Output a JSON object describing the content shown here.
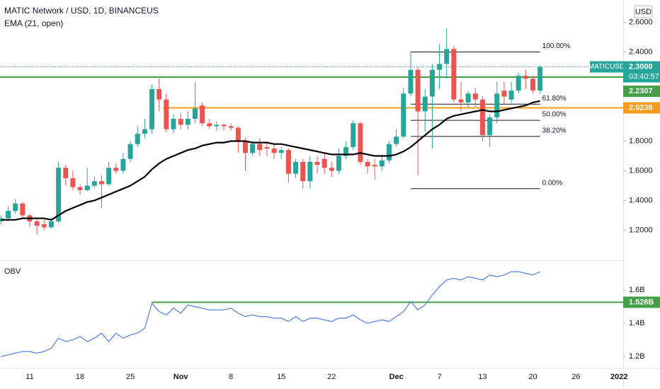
{
  "chart_data": [
    {
      "type": "candlestick",
      "title": "MATIC Network / USD, 1D, BINANCEUS",
      "currency": "USD",
      "categories": [
        null,
        null,
        null,
        null,
        "11",
        null,
        null,
        null,
        null,
        null,
        null,
        "18",
        null,
        null,
        null,
        null,
        null,
        null,
        "25",
        null,
        null,
        null,
        null,
        null,
        null,
        "Nov",
        null,
        null,
        null,
        null,
        null,
        null,
        "8",
        null,
        null,
        null,
        null,
        null,
        null,
        "15",
        null,
        null,
        null,
        null,
        null,
        null,
        "22",
        null,
        null,
        null,
        null,
        null,
        null,
        null,
        null,
        "Dec",
        null,
        null,
        null,
        null,
        null,
        "7",
        null,
        null,
        null,
        null,
        null,
        "13",
        null,
        null,
        null,
        null,
        null,
        null,
        "20",
        null,
        null,
        null,
        null,
        null,
        "26",
        null,
        null,
        null,
        null,
        null,
        "2022"
      ],
      "open": [
        1.26,
        1.28,
        1.33,
        1.38,
        1.3,
        1.26,
        1.24,
        1.22,
        1.26,
        1.62,
        1.55,
        1.49,
        1.47,
        1.5,
        1.53,
        1.51,
        1.62,
        1.6,
        1.68,
        1.78,
        1.85,
        1.88,
        2.15,
        2.08,
        1.88,
        1.95,
        1.91,
        1.95,
        2.04,
        1.92,
        1.9,
        1.91,
        1.9,
        1.89,
        1.8,
        1.72,
        1.78,
        1.76,
        1.75,
        1.72,
        1.74,
        1.58,
        1.66,
        1.53,
        1.66,
        1.68,
        1.62,
        1.6,
        1.7,
        1.76,
        1.92,
        1.66,
        1.64,
        1.63,
        1.67,
        1.78,
        1.83,
        2.12,
        2.28,
        2.0,
        2.1,
        2.28,
        2.32,
        2.42,
        2.08,
        2.06,
        2.12,
        2.08,
        1.84,
        1.96,
        2.14,
        2.08,
        2.14,
        2.24,
        2.22,
        2.14,
        null,
        null,
        null,
        null,
        null,
        null,
        null,
        null,
        null,
        null,
        null
      ],
      "high": [
        1.3,
        1.36,
        1.41,
        1.39,
        1.31,
        1.28,
        1.27,
        1.28,
        1.66,
        1.64,
        1.6,
        1.51,
        1.62,
        1.56,
        1.57,
        1.66,
        1.65,
        1.72,
        1.8,
        1.9,
        1.95,
        2.18,
        2.22,
        2.12,
        1.98,
        1.99,
        2.0,
        2.2,
        2.06,
        1.95,
        1.93,
        1.92,
        1.92,
        1.9,
        1.82,
        1.8,
        1.82,
        1.8,
        1.78,
        1.76,
        1.75,
        1.68,
        1.68,
        1.7,
        1.7,
        1.72,
        1.66,
        1.75,
        1.8,
        1.94,
        1.93,
        1.68,
        1.68,
        1.7,
        1.8,
        1.88,
        2.16,
        2.4,
        2.3,
        2.15,
        2.32,
        2.45,
        2.56,
        2.44,
        2.2,
        2.14,
        2.16,
        2.1,
        1.98,
        2.2,
        2.2,
        2.2,
        2.26,
        2.28,
        2.24,
        2.31,
        null,
        null,
        null,
        null,
        null,
        null,
        null,
        null,
        null,
        null,
        null
      ],
      "low": [
        1.24,
        1.26,
        1.31,
        1.28,
        1.22,
        1.17,
        1.2,
        1.21,
        1.25,
        1.5,
        1.47,
        1.44,
        1.46,
        1.48,
        1.35,
        1.5,
        1.58,
        1.58,
        1.66,
        1.76,
        1.82,
        1.85,
        2.0,
        1.86,
        1.85,
        1.88,
        1.88,
        1.92,
        1.9,
        1.88,
        1.87,
        1.87,
        1.87,
        1.72,
        1.6,
        1.7,
        1.7,
        1.7,
        1.68,
        1.68,
        1.52,
        1.55,
        1.48,
        1.48,
        1.58,
        1.58,
        1.56,
        1.58,
        1.68,
        1.74,
        1.64,
        1.58,
        1.54,
        1.6,
        1.65,
        1.76,
        1.82,
        2.1,
        1.57,
        1.86,
        1.75,
        2.15,
        2.22,
        2.06,
        2.0,
        2.02,
        2.03,
        1.8,
        1.76,
        1.92,
        2.05,
        2.05,
        2.12,
        2.15,
        2.12,
        2.12,
        null,
        null,
        null,
        null,
        null,
        null,
        null,
        null,
        null,
        null,
        null
      ],
      "close": [
        1.28,
        1.33,
        1.38,
        1.3,
        1.26,
        1.23,
        1.22,
        1.26,
        1.62,
        1.55,
        1.49,
        1.47,
        1.5,
        1.53,
        1.51,
        1.62,
        1.6,
        1.68,
        1.78,
        1.85,
        1.88,
        2.15,
        2.08,
        1.88,
        1.95,
        1.91,
        1.95,
        2.02,
        1.92,
        1.9,
        1.91,
        1.9,
        1.89,
        1.8,
        1.72,
        1.78,
        1.74,
        1.75,
        1.72,
        1.74,
        1.58,
        1.66,
        1.53,
        1.66,
        1.64,
        1.62,
        1.6,
        1.7,
        1.76,
        1.92,
        1.66,
        1.63,
        1.63,
        1.67,
        1.78,
        1.83,
        2.12,
        2.28,
        2.0,
        2.1,
        2.28,
        2.32,
        2.42,
        2.08,
        2.06,
        2.12,
        2.08,
        1.84,
        1.96,
        2.12,
        2.1,
        2.14,
        2.24,
        2.22,
        2.14,
        2.3,
        null,
        null,
        null,
        null,
        null,
        null,
        null,
        null,
        null,
        null,
        null
      ],
      "up_color": "#26a69a",
      "down_color": "#ef5350",
      "series": [
        {
          "name": "EMA (21, open)",
          "color": "#000000",
          "values": [
            1.27,
            1.27,
            1.27,
            1.28,
            1.28,
            1.28,
            1.28,
            1.27,
            1.3,
            1.33,
            1.35,
            1.37,
            1.39,
            1.4,
            1.42,
            1.44,
            1.46,
            1.48,
            1.5,
            1.53,
            1.56,
            1.61,
            1.65,
            1.68,
            1.7,
            1.72,
            1.74,
            1.75,
            1.77,
            1.78,
            1.79,
            1.79,
            1.8,
            1.8,
            1.8,
            1.79,
            1.79,
            1.79,
            1.78,
            1.78,
            1.77,
            1.76,
            1.75,
            1.74,
            1.73,
            1.72,
            1.71,
            1.71,
            1.71,
            1.71,
            1.72,
            1.71,
            1.7,
            1.7,
            1.7,
            1.71,
            1.73,
            1.76,
            1.8,
            1.84,
            1.88,
            1.91,
            1.95,
            1.97,
            1.98,
            1.99,
            2.0,
            2.01,
            2.0,
            2.0,
            2.01,
            2.02,
            2.03,
            2.04,
            2.06,
            2.07,
            null,
            null,
            null,
            null,
            null,
            null,
            null,
            null,
            null,
            null,
            null
          ]
        }
      ],
      "ylim": [
        1.0,
        2.75
      ],
      "yticks": [
        {
          "value": 2.6,
          "label": "2.6000"
        },
        {
          "value": 2.4,
          "label": "2.4000"
        },
        {
          "value": 1.8,
          "label": "1.8000"
        },
        {
          "value": 1.6,
          "label": "1.6000"
        },
        {
          "value": 1.4,
          "label": "1.4000"
        },
        {
          "value": 1.2,
          "label": "1.2000"
        }
      ],
      "hlines": [
        {
          "value": 2.2307,
          "color": "#43a047"
        },
        {
          "value": 2.0238,
          "color": "#f59c1a"
        }
      ],
      "last": {
        "name": "MATICUSD",
        "value": 2.3,
        "value_label": "2.3000",
        "countdown": "03:40:57",
        "color": "#26a69a"
      },
      "fib": [
        {
          "value": 2.4,
          "label": "100.00%"
        },
        {
          "value": 2.0486,
          "label": "61.80%"
        },
        {
          "value": 1.94,
          "label": "50.00%"
        },
        {
          "value": 1.8314,
          "label": "38.20%"
        },
        {
          "value": 1.48,
          "label": "0.00%"
        }
      ]
    },
    {
      "type": "line",
      "title": "OBV",
      "color": "#4f7fe8",
      "values": [
        1200000000.0,
        1210000000.0,
        1220000000.0,
        1230000000.0,
        1230000000.0,
        1220000000.0,
        1230000000.0,
        1250000000.0,
        1310000000.0,
        1290000000.0,
        1300000000.0,
        1320000000.0,
        1290000000.0,
        1310000000.0,
        1340000000.0,
        1290000000.0,
        1340000000.0,
        1310000000.0,
        1330000000.0,
        1340000000.0,
        1370000000.0,
        1520000000.0,
        1470000000.0,
        1450000000.0,
        1490000000.0,
        1460000000.0,
        1510000000.0,
        1500000000.0,
        1490000000.0,
        1480000000.0,
        1480000000.0,
        1480000000.0,
        1490000000.0,
        1460000000.0,
        1440000000.0,
        1450000000.0,
        1440000000.0,
        1440000000.0,
        1430000000.0,
        1430000000.0,
        1410000000.0,
        1440000000.0,
        1410000000.0,
        1430000000.0,
        1430000000.0,
        1420000000.0,
        1410000000.0,
        1430000000.0,
        1430000000.0,
        1450000000.0,
        1420000000.0,
        1400000000.0,
        1410000000.0,
        1420000000.0,
        1410000000.0,
        1440000000.0,
        1470000000.0,
        1530000000.0,
        1480000000.0,
        1510000000.0,
        1570000000.0,
        1620000000.0,
        1660000000.0,
        1670000000.0,
        1660000000.0,
        1680000000.0,
        1670000000.0,
        1660000000.0,
        1690000000.0,
        1680000000.0,
        1690000000.0,
        1710000000.0,
        1710000000.0,
        1700000000.0,
        1690000000.0,
        1710000000.0,
        null,
        null,
        null,
        null,
        null,
        null,
        null,
        null,
        null,
        null,
        null
      ],
      "ylim": [
        1132000000.0,
        1770000000.0
      ],
      "yticks": [
        {
          "value": 1600000000.0,
          "label": "1.6B"
        },
        {
          "value": 1400000000.0,
          "label": "1.4B"
        },
        {
          "value": 1200000000.0,
          "label": "1.2B"
        }
      ],
      "hlines": [
        {
          "value": 1526000000.0,
          "label": "1.526B",
          "color": "#43a047"
        }
      ]
    }
  ]
}
